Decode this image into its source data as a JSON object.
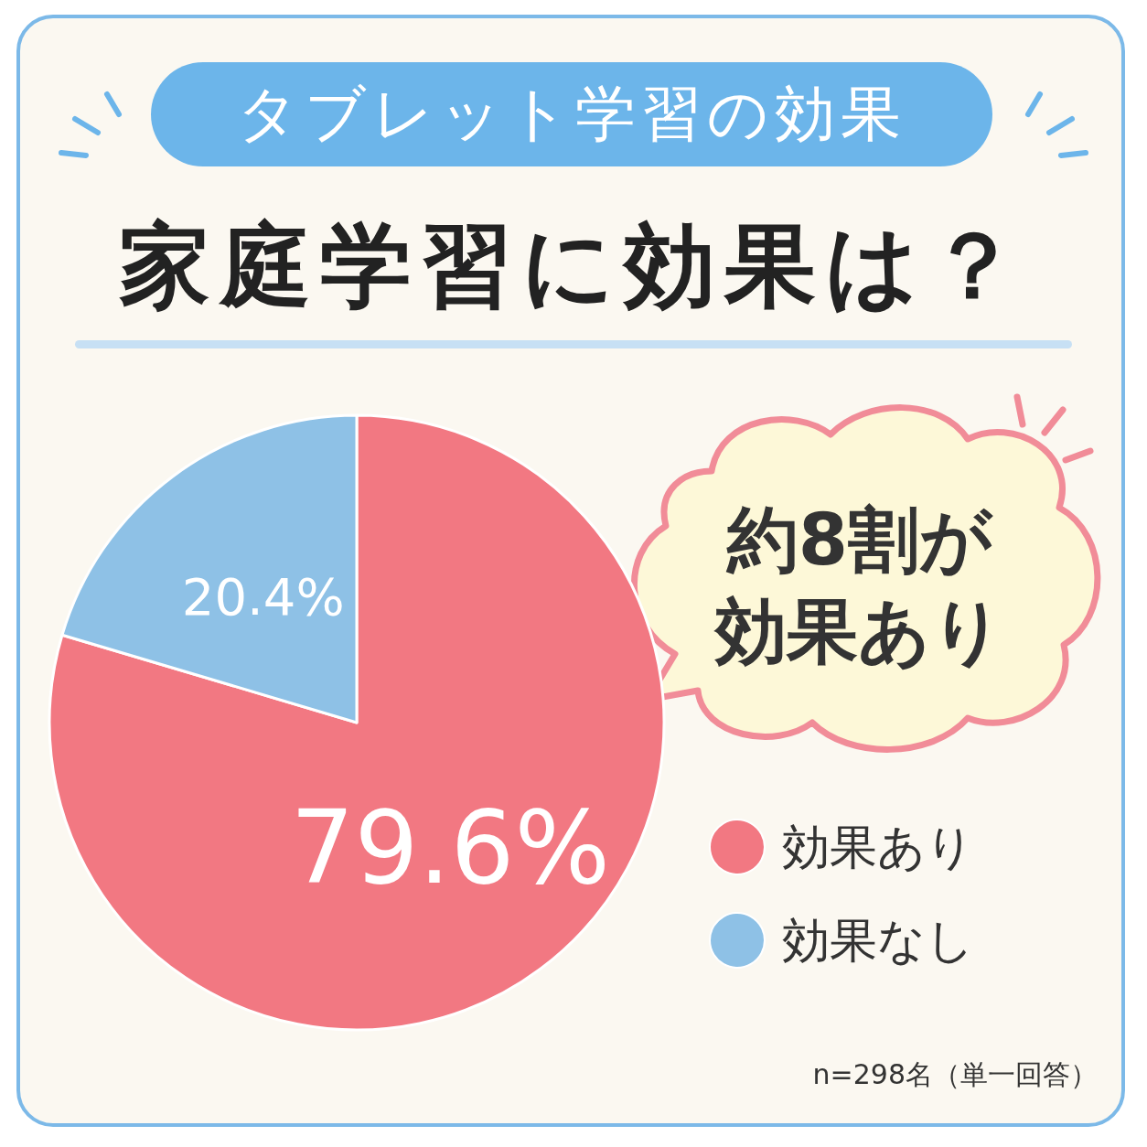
{
  "chart_data": {
    "type": "pie",
    "title": "タブレット学習の効果",
    "subtitle": "家庭学習に効果は？",
    "categories": [
      "効果あり",
      "効果なし"
    ],
    "values": [
      79.6,
      20.4
    ],
    "colors": [
      "#f27882",
      "#8ec1e6"
    ],
    "value_labels": [
      "79.6%",
      "20.4%"
    ],
    "legend": "right",
    "annotations": [
      "約8割が効果あり",
      "n=298名（単一回答）"
    ]
  }
}
